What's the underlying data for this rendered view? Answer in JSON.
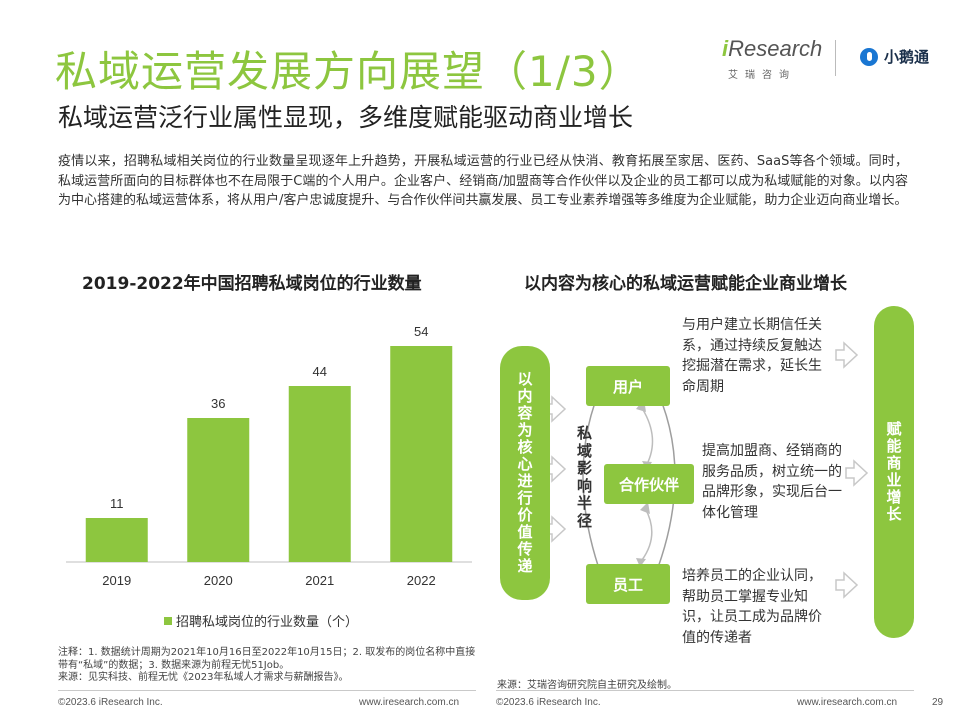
{
  "header": {
    "title": "私域运营发展方向展望（1/3）",
    "subtitle": "私域运营泛行业属性显现，多维度赋能驱动商业增长"
  },
  "logos": {
    "iresearch_dot": "i",
    "iresearch_rest": "Research",
    "iresearch_cn": "艾瑞咨询",
    "partner_name": "小鹅通",
    "partner_icon": "xiaoetong-logo-icon"
  },
  "intro": "疫情以来，招聘私域相关岗位的行业数量呈现逐年上升趋势，开展私域运营的行业已经从快消、教育拓展至家居、医药、SaaS等各个领域。同时，私域运营所面向的目标群体也不在局限于C端的个人用户。企业客户、经销商/加盟商等合作伙伴以及企业的员工都可以成为私域赋能的对象。以内容为中心搭建的私域运营体系，将从用户/客户忠诚度提升、与合作伙伴间共赢发展、员工专业素养增强等多维度为企业赋能，助力企业迈向商业增长。",
  "chart_data": {
    "type": "bar",
    "title": "2019-2022年中国招聘私域岗位的行业数量",
    "categories": [
      "2019",
      "2020",
      "2021",
      "2022"
    ],
    "series": [
      {
        "name": "招聘私域岗位的行业数量（个）",
        "values": [
          11,
          36,
          44,
          54
        ]
      }
    ],
    "ylim": [
      0,
      62
    ],
    "legend_position": "bottom",
    "bar_color": "#8dc63f",
    "axis_color": "#bfbfbf"
  },
  "chart_note": "注释：1. 数据统计周期为2021年10月16日至2022年10月15日；2. 取发布的岗位名称中直接带有“私域”的数据；3. 数据来源为前程无忧51Job。\n来源：见实科技、前程无忧《2023年私域人才需求与薪酬报告》。",
  "diagram": {
    "title": "以内容为核心的私域运营赋能企业商业增长",
    "left_pill": "以内容为核心进行价值传递",
    "right_pill": "赋能商业增长",
    "radius_label": "私域影响半径",
    "nodes": [
      {
        "label": "用户",
        "desc": "与用户建立长期信任关系，通过持续反复触达挖掘潜在需求，延长生命周期"
      },
      {
        "label": "合作伙伴",
        "desc": "提高加盟商、经销商的服务品质，树立统一的品牌形象，实现后台一体化管理"
      },
      {
        "label": "员工",
        "desc": "培养员工的企业认同，帮助员工掌握专业知识，让员工成为品牌价值的传递者"
      }
    ],
    "source": "来源：艾瑞咨询研究院自主研究及绘制。"
  },
  "footer": {
    "left_copyright": "©2023.6 iResearch Inc.",
    "left_url": "www.iresearch.com.cn",
    "right_copyright": "©2023.6 iResearch Inc.",
    "right_url": "www.iresearch.com.cn",
    "page_number": "29"
  }
}
